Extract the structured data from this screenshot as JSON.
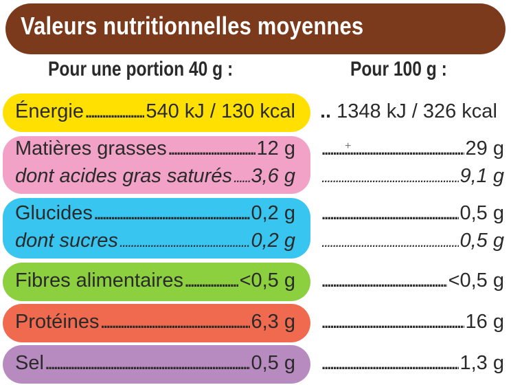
{
  "title": "Valeurs nutritionnelles moyennes",
  "headers": {
    "portion": "Pour une portion 40 g :",
    "per100": "Pour 100 g :"
  },
  "dots": "..................................................................................",
  "colors": {
    "title": "#7b3a1c",
    "energie": "#ffe000",
    "matieres": "#f2a1c7",
    "glucides": "#38c5f0",
    "fibres": "#8ccf3f",
    "proteines": "#f06a4f",
    "sel": "#b88bc0"
  },
  "rows": {
    "energie": {
      "label": "Énergie",
      "portion": "540 kJ / 130 kcal",
      "per100": "1348 kJ / 326 kcal",
      "lead": ".."
    },
    "matieres": {
      "label": "Matières grasses",
      "portion": "12 g",
      "per100": "29 g"
    },
    "satures": {
      "label": "dont acides gras saturés",
      "portion": "3,6 g",
      "per100": "9,1 g"
    },
    "glucides": {
      "label": "Glucides",
      "portion": "0,2 g",
      "per100": "0,5 g"
    },
    "sucres": {
      "label": "dont sucres",
      "portion": "0,2 g",
      "per100": "0,5 g"
    },
    "fibres": {
      "label": "Fibres alimentaires",
      "portion": "<0,5 g",
      "per100": "<0,5 g"
    },
    "proteines": {
      "label": "Protéines",
      "portion": "6,3 g",
      "per100": "16 g"
    },
    "sel": {
      "label": "Sel",
      "portion": "0,5 g",
      "per100": "1,3 g"
    }
  }
}
